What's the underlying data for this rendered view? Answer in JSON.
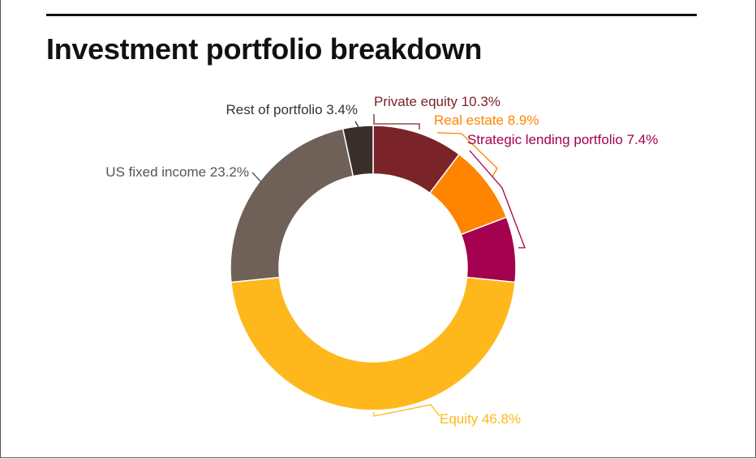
{
  "chart_data": {
    "type": "pie",
    "variant": "donut",
    "title": "Investment portfolio breakdown",
    "slices": [
      {
        "label": "Private equity",
        "value_text": "10.3%",
        "value": 10.3,
        "color": "#7a2329"
      },
      {
        "label": "Real estate",
        "value_text": "8.9%",
        "value": 8.9,
        "color": "#ff8400"
      },
      {
        "label": "Strategic lending portfolio",
        "value_text": "7.4%",
        "value": 7.4,
        "color": "#a3004f"
      },
      {
        "label": "Equity",
        "value_text": "46.8%",
        "value": 46.8,
        "color": "#ffb81c"
      },
      {
        "label": "US fixed income",
        "value_text": "23.2%",
        "value": 23.2,
        "color": "#6f6157"
      },
      {
        "label": "Rest of portfolio",
        "value_text": "3.4%",
        "value": 3.4,
        "color": "#3a2e2b"
      }
    ],
    "label_colors": {
      "Private equity": "#7a2329",
      "Real estate": "#ff8400",
      "Strategic lending portfolio": "#a3004f",
      "Equity": "#ffb81c",
      "US fixed income": "#555555",
      "Rest of portfolio": "#333333"
    },
    "legend": "none",
    "labels": "callouts with leader lines"
  }
}
